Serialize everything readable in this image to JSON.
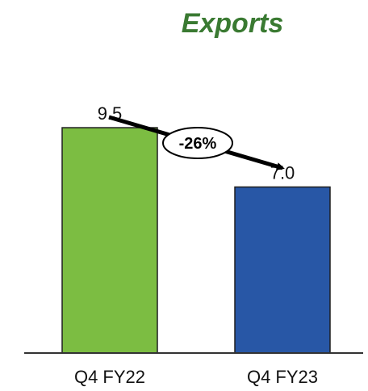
{
  "chart_data": {
    "type": "bar",
    "title": "Exports",
    "categories": [
      "Q4 FY22",
      "Q4 FY23"
    ],
    "values": [
      9.5,
      7.0
    ],
    "value_labels": [
      "9.5",
      "7.0"
    ],
    "change_annotation": "-26%",
    "xlabel": "",
    "ylabel": "",
    "ylim": [
      0,
      11
    ],
    "grid": false,
    "legend": "none"
  },
  "colors": {
    "title": "#3a7a32",
    "bars": [
      "#7cbd42",
      "#2857a6"
    ],
    "bar_outline": "#1f1f1f",
    "axis": "#333333",
    "arrow": "#000000"
  }
}
